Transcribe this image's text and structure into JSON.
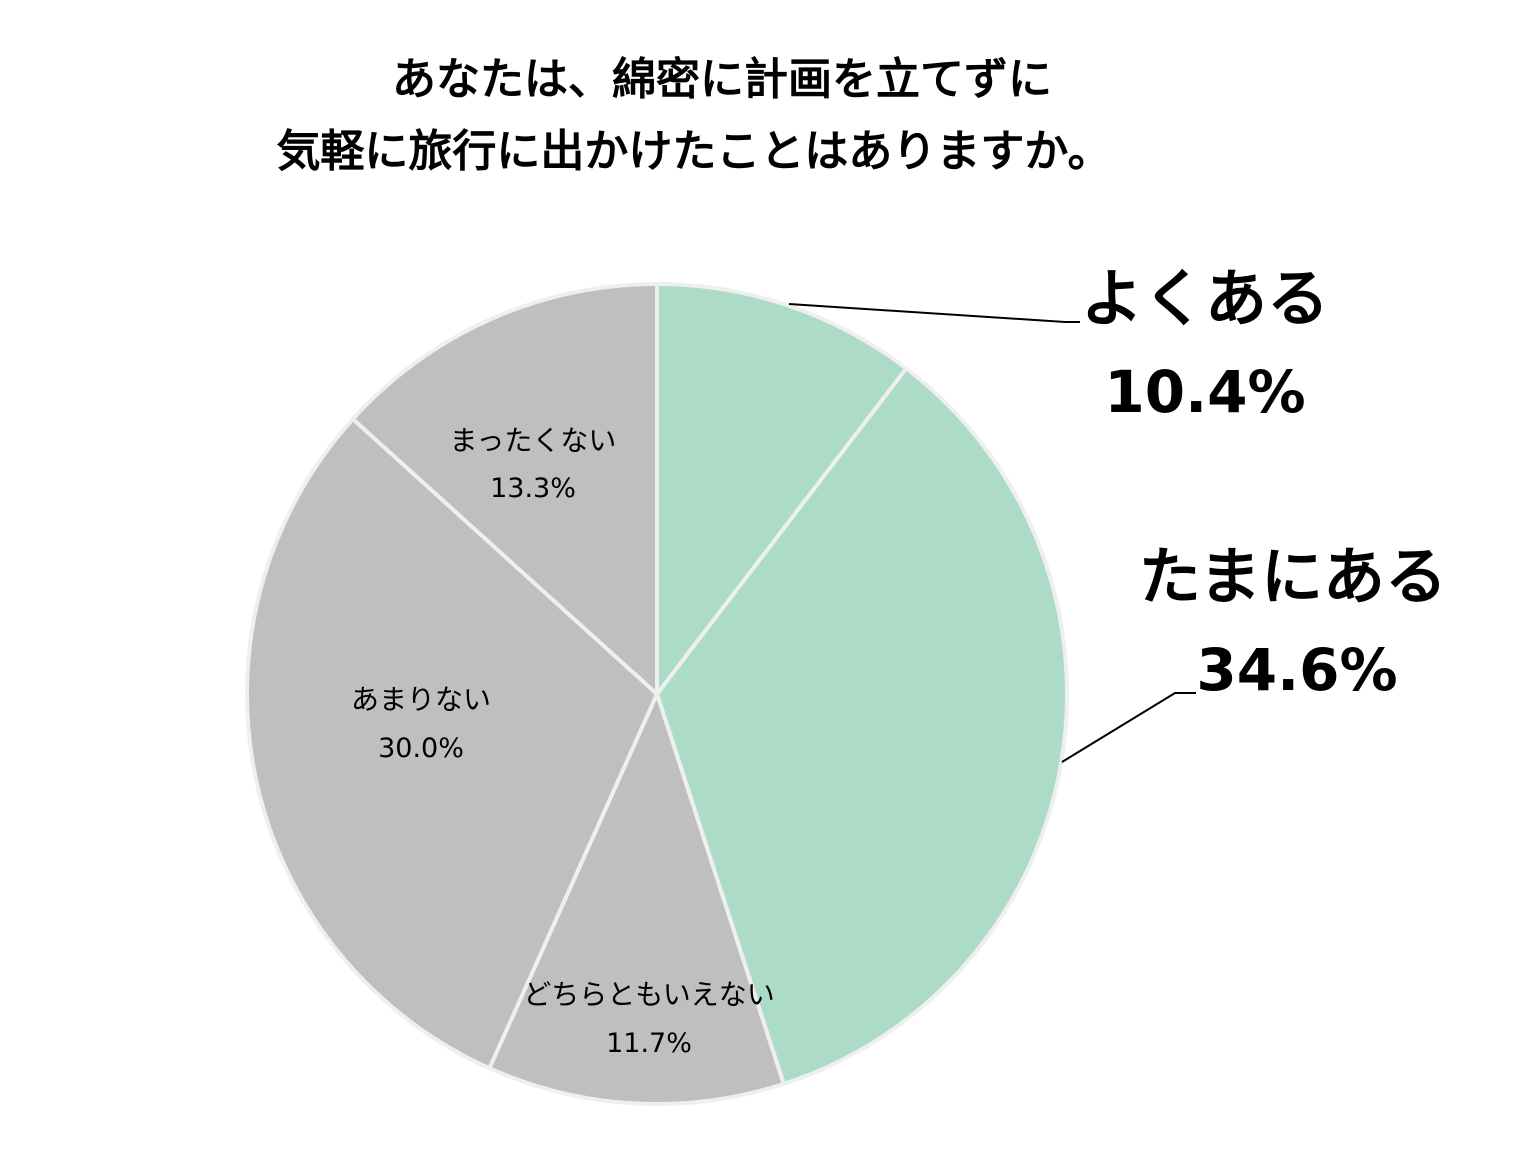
{
  "chart_data": {
    "type": "pie",
    "title": [
      "あなたは、綿密に計画を立てずに",
      "気軽に旅行に出かけたことはありますか。"
    ],
    "slices": [
      {
        "label": "よくある",
        "value": 10.4,
        "value_label": "10.4%",
        "color": "#acdbc7",
        "label_style": "external"
      },
      {
        "label": "たまにある",
        "value": 34.6,
        "value_label": "34.6%",
        "color": "#acdbc7",
        "label_style": "external"
      },
      {
        "label": "どちらともいえない",
        "value": 11.7,
        "value_label": "11.7%",
        "color": "#bfbfbf",
        "label_style": "internal"
      },
      {
        "label": "あまりない",
        "value": 30.0,
        "value_label": "30.0%",
        "color": "#bfbfbf",
        "label_style": "internal"
      },
      {
        "label": "まったくない",
        "value": 13.3,
        "value_label": "13.3%",
        "color": "#bfbfbf",
        "label_style": "internal"
      }
    ],
    "start_angle": "12 o'clock",
    "direction": "clockwise",
    "slice_border_color": "#efefef",
    "leader_line_color": "#000000"
  }
}
